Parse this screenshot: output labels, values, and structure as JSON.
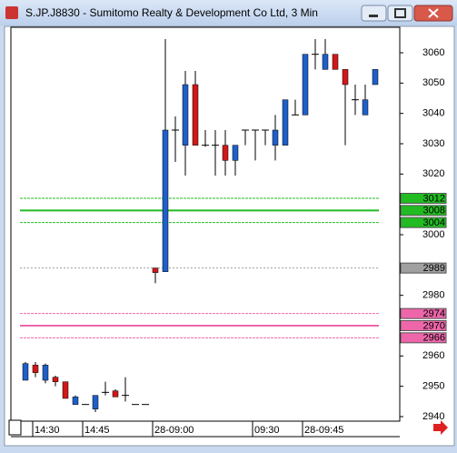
{
  "chart_data": {
    "type": "candlestick",
    "title": "S.JP.J8830 - Sumitomo Realty & Development Co Ltd, 3 Min",
    "categories": [
      null,
      "14:30",
      null,
      null,
      null,
      null,
      "14:45",
      null,
      null,
      null,
      null,
      null,
      null,
      "28-09:00",
      null,
      null,
      null,
      null,
      null,
      null,
      null,
      null,
      null,
      "09:30",
      null,
      null,
      null,
      null,
      "28-09:45",
      null,
      null,
      null,
      null,
      null,
      null,
      null
    ],
    "open": [
      2952,
      2957,
      2952,
      2953,
      2951.5,
      2944,
      2944,
      2942.5,
      2948,
      2948.5,
      2947,
      2944,
      2944,
      2989,
      2987.8,
      3034.5,
      3029.5,
      3049.5,
      3029.5,
      3029.5,
      3029.5,
      3024.5,
      3034.5,
      3034.5,
      3034.5,
      3029.5,
      3029.5,
      3039.5,
      3039.5,
      3059.5,
      3054.5,
      3059.5,
      3054.5,
      3044.5,
      3039.5,
      3049.5
    ],
    "high": [
      2958,
      2958,
      2957.5,
      2953.5,
      2951.5,
      2947,
      2944,
      2947,
      2951.5,
      2949,
      2953,
      2944,
      2944,
      2989,
      3064.5,
      3039,
      3054,
      3054,
      3034.5,
      3034.5,
      3034.5,
      3029.5,
      3034.5,
      3034.5,
      3034.5,
      3039.5,
      3044.5,
      3044.5,
      3059.5,
      3064.5,
      3064.5,
      3059.5,
      3054.5,
      3049.5,
      3049.5,
      3054.5
    ],
    "low": [
      2952,
      2953,
      2951,
      2950,
      2946,
      2944,
      2944,
      2941.5,
      2947,
      2946.5,
      2945,
      2944,
      2944,
      2984,
      2987.8,
      3024,
      3019.5,
      3029.5,
      3029,
      3019.5,
      3019.5,
      3019.5,
      3029.5,
      3024.5,
      3029.5,
      3024.5,
      3029.5,
      3039.5,
      3039.5,
      3054.5,
      3054.5,
      3054.5,
      3029.5,
      3039.5,
      3039.5,
      3049.5
    ],
    "close": [
      2957.5,
      2954.5,
      2957,
      2951.5,
      2946,
      2946.5,
      2944,
      2947,
      2948,
      2946.5,
      2947,
      2944,
      2944,
      2987.5,
      3034.5,
      3034.5,
      3049.5,
      3029.5,
      3029.5,
      3029.5,
      3024.5,
      3029.5,
      3034.5,
      3034.5,
      3034.5,
      3034.5,
      3044.5,
      3039.5,
      3059.5,
      3059.5,
      3059.5,
      3054.5,
      3049.5,
      3044.5,
      3044.5,
      3054.5
    ],
    "up_color": "#1f5fc8",
    "down_color": "#d01818",
    "flat_color": "#000000",
    "ylim": [
      2938.5,
      3068.4
    ],
    "yticks": [
      2940,
      2950,
      2960,
      2980,
      3000,
      3020,
      3030,
      3040,
      3050,
      3060
    ],
    "levels": [
      {
        "value": 3012,
        "color": "#22bb22",
        "style": "dashed"
      },
      {
        "value": 3008,
        "color": "#22bb22",
        "style": "solid"
      },
      {
        "value": 3004,
        "color": "#22bb22",
        "style": "dashed"
      },
      {
        "value": 2989,
        "color": "#a0a0a0",
        "style": "dotted"
      },
      {
        "value": 2974,
        "color": "#ee66aa",
        "style": "dashed"
      },
      {
        "value": 2970,
        "color": "#ee66aa",
        "style": "solid"
      },
      {
        "value": 2966,
        "color": "#ee66aa",
        "style": "dashed"
      }
    ]
  }
}
